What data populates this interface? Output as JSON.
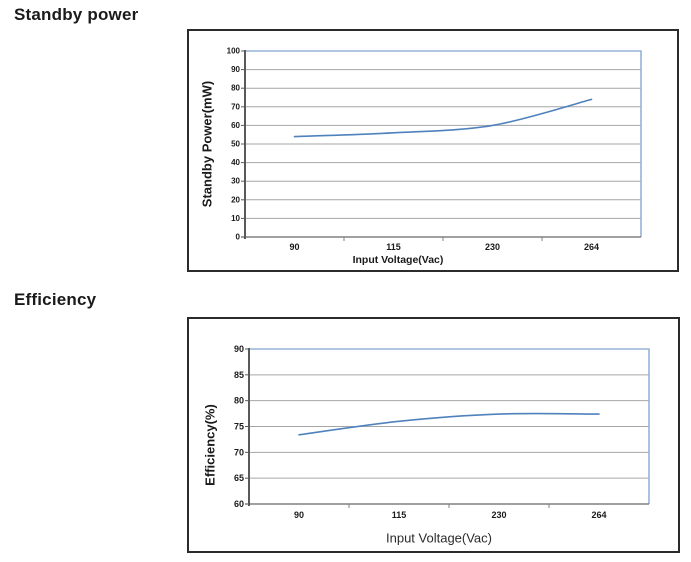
{
  "page": {
    "section1_title": "Standby power",
    "section2_title": "Efficiency"
  },
  "chart_data": [
    {
      "type": "line",
      "title": "Standby power",
      "xlabel": "Input Voltage(Vac)",
      "ylabel": "Standby Power(mW)",
      "categories": [
        "90",
        "115",
        "230",
        "264"
      ],
      "values": [
        54,
        56,
        60,
        74
      ],
      "ylim": [
        0,
        100
      ],
      "ytick_step": 10,
      "grid": true,
      "legend": "none",
      "colors": {
        "line": "#4f81bd",
        "plot_border": "#95b3d7",
        "gridline": "#a6a6a6",
        "y_axis": "#595959",
        "x_axis": "#808080",
        "tick_text": "#1a1a1a"
      }
    },
    {
      "type": "line",
      "title": "Efficiency",
      "xlabel": "Input Voltage(Vac)",
      "ylabel": "Efficiency(%)",
      "categories": [
        "90",
        "115",
        "230",
        "264"
      ],
      "values": [
        73.4,
        76,
        77.4,
        77.4
      ],
      "ylim": [
        60,
        90
      ],
      "ytick_step": 5,
      "grid": true,
      "legend": "none",
      "colors": {
        "line": "#4f81bd",
        "plot_border": "#95b3d7",
        "gridline": "#a6a6a6",
        "y_axis": "#595959",
        "x_axis": "#808080",
        "tick_text": "#1a1a1a"
      }
    }
  ]
}
